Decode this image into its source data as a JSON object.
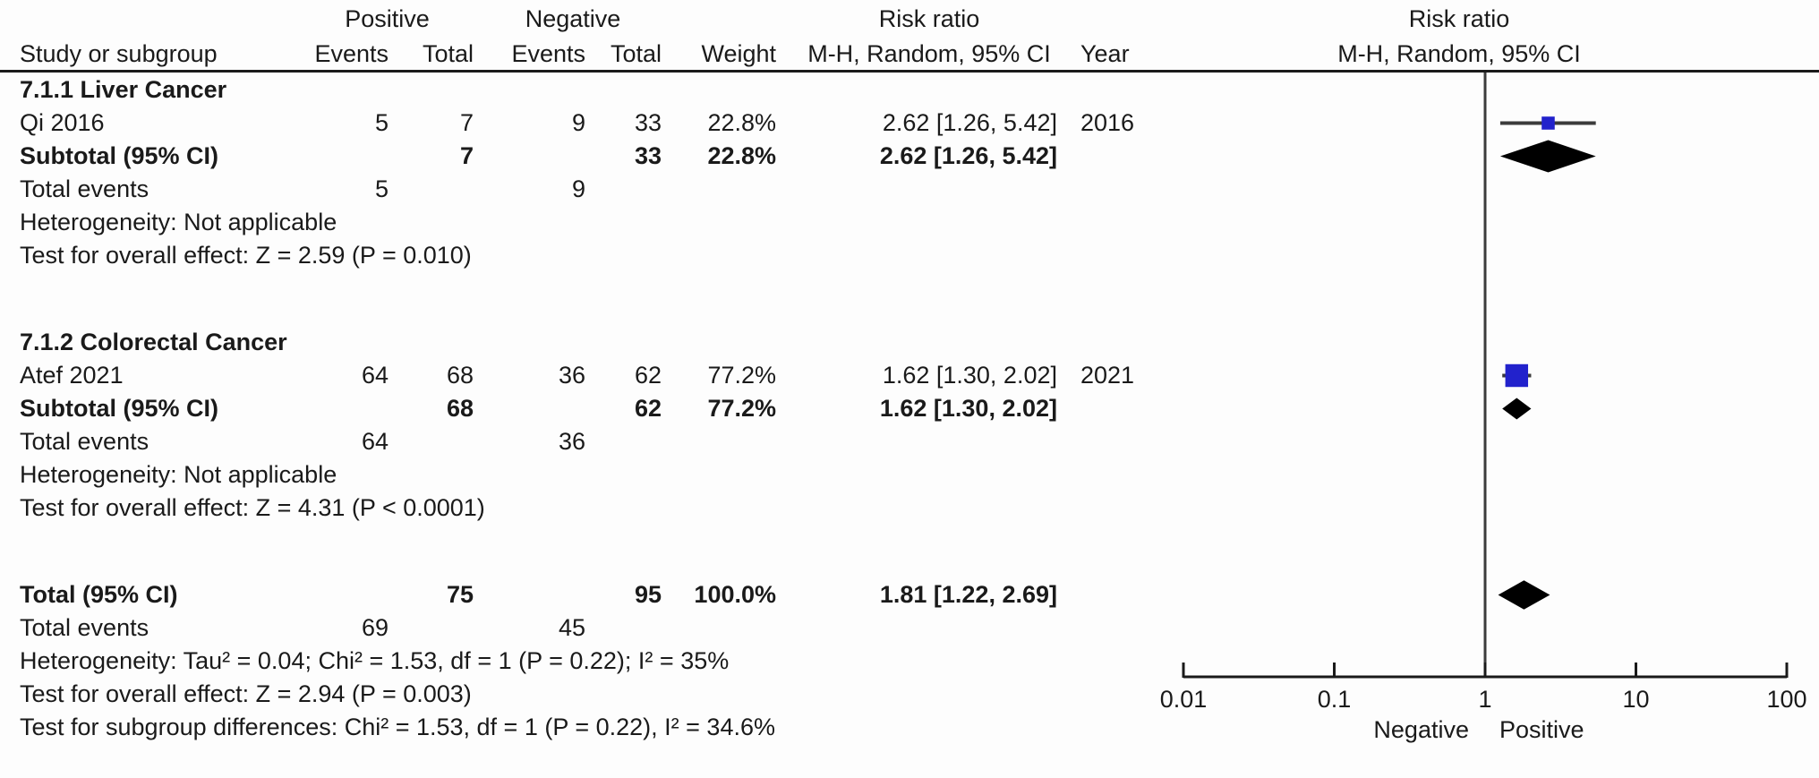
{
  "colors": {
    "marker_blue": "#2222CC",
    "diamond_black": "#000000",
    "ci_line": "#3B3B3B",
    "axis_line": "#1A1A1A",
    "text": "#1A1A1A"
  },
  "table": {
    "group_headers": {
      "positive": "Positive",
      "negative": "Negative",
      "risk_ratio": "Risk ratio"
    },
    "columns": {
      "study": "Study or subgroup",
      "events": "Events",
      "total": "Total",
      "weight": "Weight",
      "mh": "M-H, Random, 95% CI",
      "year": "Year"
    },
    "plot_header": {
      "line1": "Risk ratio",
      "line2": "M-H, Random, 95% CI"
    },
    "rows": [
      {
        "kind": "section",
        "label": "7.1.1 Liver Cancer"
      },
      {
        "kind": "study",
        "row_id": "qi2016",
        "study": "Qi 2016",
        "pos_events": "5",
        "pos_total": "7",
        "neg_events": "9",
        "neg_total": "33",
        "weight": "22.8%",
        "mh": "2.62 [1.26, 5.42]",
        "year": "2016"
      },
      {
        "kind": "subtotal",
        "row_id": "sub1",
        "study": "Subtotal (95% CI)",
        "pos_total": "7",
        "neg_total": "33",
        "weight": "22.8%",
        "mh": "2.62 [1.26, 5.42]"
      },
      {
        "kind": "events",
        "study": "Total events",
        "pos_events": "5",
        "neg_events": "9"
      },
      {
        "kind": "note",
        "label": "Heterogeneity: Not applicable"
      },
      {
        "kind": "note",
        "label": "Test for overall effect: Z = 2.59 (P = 0.010)"
      },
      {
        "kind": "spacer"
      },
      {
        "kind": "section",
        "label": "7.1.2 Colorectal Cancer"
      },
      {
        "kind": "study",
        "row_id": "atef2021",
        "study": "Atef 2021",
        "pos_events": "64",
        "pos_total": "68",
        "neg_events": "36",
        "neg_total": "62",
        "weight": "77.2%",
        "mh": "1.62 [1.30, 2.02]",
        "year": "2021"
      },
      {
        "kind": "subtotal",
        "row_id": "sub2",
        "study": "Subtotal (95% CI)",
        "pos_total": "68",
        "neg_total": "62",
        "weight": "77.2%",
        "mh": "1.62 [1.30, 2.02]"
      },
      {
        "kind": "events",
        "study": "Total events",
        "pos_events": "64",
        "neg_events": "36"
      },
      {
        "kind": "note",
        "label": "Heterogeneity: Not applicable"
      },
      {
        "kind": "note",
        "label": "Test for overall effect: Z = 4.31 (P < 0.0001)"
      },
      {
        "kind": "spacer"
      },
      {
        "kind": "subtotal",
        "row_id": "total",
        "study": "Total (95% CI)",
        "pos_total": "75",
        "neg_total": "95",
        "weight": "100.0%",
        "mh": "1.81 [1.22, 2.69]"
      },
      {
        "kind": "events",
        "study": "Total events",
        "pos_events": "69",
        "neg_events": "45"
      },
      {
        "kind": "note",
        "label": "Heterogeneity: Tau² = 0.04; Chi² = 1.53, df = 1 (P = 0.22); I² = 35%"
      },
      {
        "kind": "note",
        "label": "Test for overall effect: Z = 2.94 (P = 0.003)"
      },
      {
        "kind": "note",
        "label": "Test for subgroup differences: Chi² = 1.53, df = 1 (P = 0.22), I² = 34.6%"
      }
    ]
  },
  "chart_data": {
    "type": "forest",
    "effect_measure": "Risk ratio",
    "method": "M-H, Random, 95% CI",
    "axis": {
      "scale": "log",
      "min": 0.01,
      "max": 100,
      "ticks": [
        0.01,
        0.1,
        1,
        10,
        100
      ],
      "tick_labels": [
        "0.01",
        "0.1",
        "1",
        "10",
        "100"
      ],
      "left_label": "Negative",
      "right_label": "Positive"
    },
    "markers": [
      {
        "row_id": "qi2016",
        "type": "study",
        "label": "Qi 2016",
        "rr": 2.62,
        "ci_low": 1.26,
        "ci_high": 5.42,
        "weight_pct": 22.8
      },
      {
        "row_id": "sub1",
        "type": "diamond",
        "label": "Liver Cancer subtotal",
        "rr": 2.62,
        "ci_low": 1.26,
        "ci_high": 5.42
      },
      {
        "row_id": "atef2021",
        "type": "study",
        "label": "Atef 2021",
        "rr": 1.62,
        "ci_low": 1.3,
        "ci_high": 2.02,
        "weight_pct": 77.2
      },
      {
        "row_id": "sub2",
        "type": "diamond",
        "label": "Colorectal Cancer subtotal",
        "rr": 1.62,
        "ci_low": 1.3,
        "ci_high": 2.02
      },
      {
        "row_id": "total",
        "type": "diamond",
        "label": "Total",
        "rr": 1.81,
        "ci_low": 1.22,
        "ci_high": 2.69
      }
    ]
  }
}
